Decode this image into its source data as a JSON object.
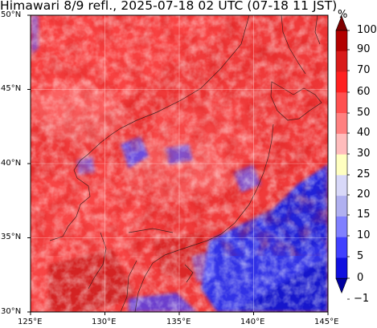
{
  "title": "Himawari 8/9 refl., 2025-07-18 02 UTC (07-18 11 JST)",
  "map": {
    "extent": {
      "lon": [
        125,
        145
      ],
      "lat": [
        30,
        50
      ]
    },
    "lat_labels": [
      "50°N",
      "45°N",
      "40°N",
      "35°N",
      "30°N"
    ],
    "lon_labels": [
      "125°E",
      "130°E",
      "135°E",
      "140°E",
      "145°E"
    ],
    "gridlines": true,
    "field": "satellite reflectance"
  },
  "colorbar": {
    "unit": "%",
    "labels": [
      "100",
      "90",
      "70",
      "60",
      "50",
      "40",
      "30",
      "25",
      "20",
      "15",
      "10",
      "5",
      "0",
      "−1"
    ],
    "colors": [
      "#7f0000",
      "#b30000",
      "#d91a1a",
      "#ff2020",
      "#ff5050",
      "#ff8080",
      "#ffbcbc",
      "#ffffc0",
      "#d8d8f8",
      "#b0b0f0",
      "#8080ff",
      "#4040ff",
      "#1010e0",
      "#0000a0"
    ]
  }
}
